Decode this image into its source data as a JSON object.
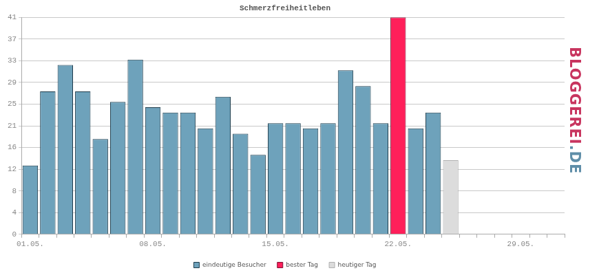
{
  "chart_data": {
    "type": "bar",
    "title": "Schmerzfreiheitleben",
    "categories": [
      "01.05.",
      null,
      null,
      null,
      null,
      null,
      null,
      "08.05.",
      null,
      null,
      null,
      null,
      null,
      null,
      "15.05.",
      null,
      null,
      null,
      null,
      null,
      null,
      "22.05.",
      null,
      null,
      null,
      null,
      null,
      null,
      "29.05.",
      null,
      null
    ],
    "series": [
      {
        "name": "eindeutige Besucher",
        "color": "#6ea2bb",
        "values": [
          13,
          27,
          32,
          27,
          18,
          25,
          33,
          24,
          23,
          23,
          20,
          26,
          19,
          15,
          21,
          21,
          20,
          21,
          31,
          28,
          21,
          null,
          20,
          23,
          null,
          null,
          null,
          null,
          null,
          null,
          null
        ]
      },
      {
        "name": "bester Tag",
        "color": "#ff1f5a",
        "values": [
          null,
          null,
          null,
          null,
          null,
          null,
          null,
          null,
          null,
          null,
          null,
          null,
          null,
          null,
          null,
          null,
          null,
          null,
          null,
          null,
          null,
          41,
          null,
          null,
          null,
          null,
          null,
          null,
          null,
          null,
          null
        ]
      },
      {
        "name": "heutiger Tag",
        "color": "#dcdcdc",
        "values": [
          null,
          null,
          null,
          null,
          null,
          null,
          null,
          null,
          null,
          null,
          null,
          null,
          null,
          null,
          null,
          null,
          null,
          null,
          null,
          null,
          null,
          null,
          null,
          null,
          14,
          null,
          null,
          null,
          null,
          null,
          null
        ]
      }
    ],
    "ylim": [
      0,
      41
    ],
    "yticks": [
      0,
      {
        "value": 4.1,
        "label": "4"
      },
      {
        "value": 8.2,
        "label": "8"
      },
      {
        "value": 12.3,
        "label": "12"
      },
      {
        "value": 16.4,
        "label": "16"
      },
      {
        "value": 20.5,
        "label": "21"
      },
      {
        "value": 24.6,
        "label": "25"
      },
      {
        "value": 28.7,
        "label": "29"
      },
      {
        "value": 32.8,
        "label": "33"
      },
      {
        "value": 36.9,
        "label": "37"
      },
      41
    ],
    "grid": true,
    "stacked": true,
    "legend": "bottom",
    "annotations": [
      "BLOGGEREI.DE"
    ]
  }
}
